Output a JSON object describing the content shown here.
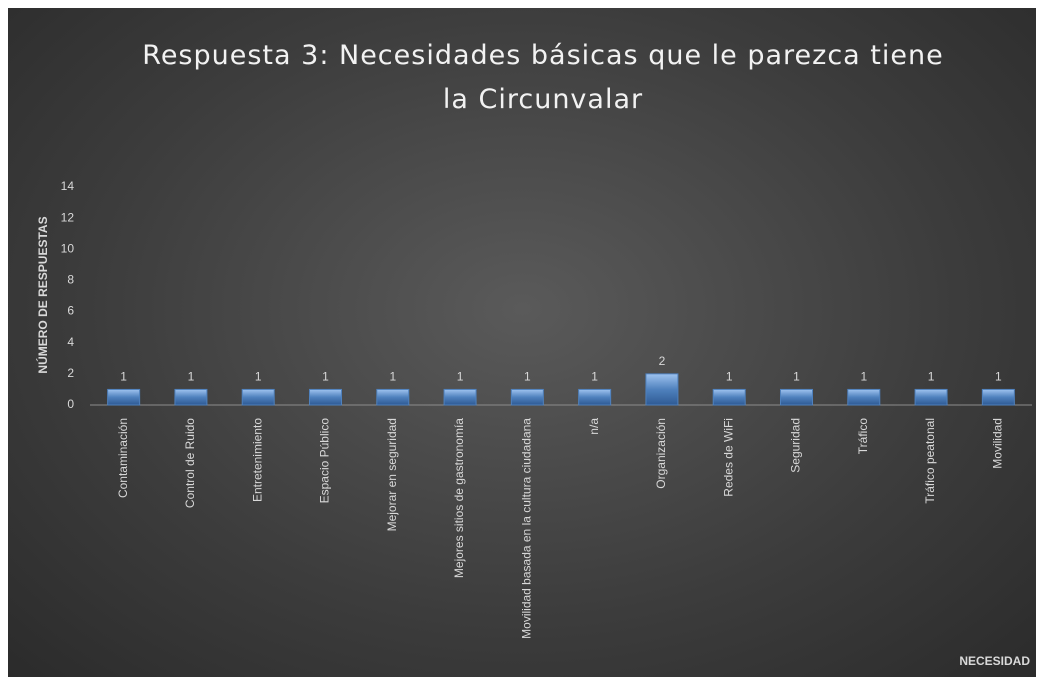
{
  "chart_data": {
    "type": "bar",
    "title": "Respuesta 3: Necesidades básicas que le parezca tiene la Circunvalar",
    "xlabel": "NECESIDAD",
    "ylabel": "NÚMERO DE RESPUESTAS",
    "categories": [
      "Contaminación",
      "Control de Ruido",
      "Entretenimiento",
      "Espacio Público",
      "Mejorar en seguridad",
      "Mejores sitios de gastronomía",
      "Movilidad basada en la cultura ciudadana",
      "n/a",
      "Organización",
      "Redes de WiFi",
      "Seguridad",
      "Tráfico",
      "Tráfico peatonal",
      "Movilidad"
    ],
    "values": [
      1,
      1,
      1,
      1,
      1,
      1,
      1,
      1,
      2,
      1,
      1,
      1,
      1,
      1
    ],
    "color": "#4f81bd",
    "ylim": [
      0,
      14
    ],
    "yticks": [
      0,
      2,
      4,
      6,
      8,
      10,
      12,
      14
    ],
    "grid": false
  }
}
